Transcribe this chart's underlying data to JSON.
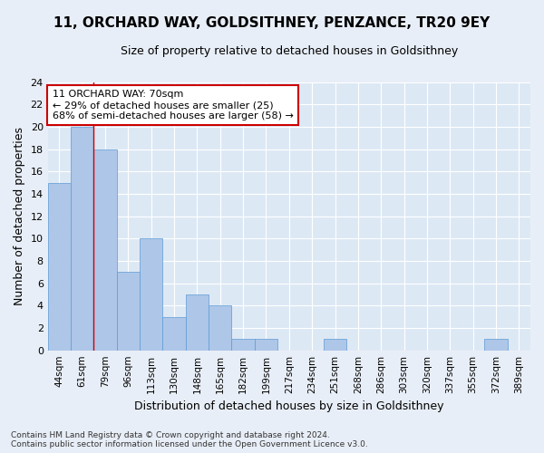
{
  "title": "11, ORCHARD WAY, GOLDSITHNEY, PENZANCE, TR20 9EY",
  "subtitle": "Size of property relative to detached houses in Goldsithney",
  "xlabel": "Distribution of detached houses by size in Goldsithney",
  "ylabel": "Number of detached properties",
  "bins": [
    "44sqm",
    "61sqm",
    "79sqm",
    "96sqm",
    "113sqm",
    "130sqm",
    "148sqm",
    "165sqm",
    "182sqm",
    "199sqm",
    "217sqm",
    "234sqm",
    "251sqm",
    "268sqm",
    "286sqm",
    "303sqm",
    "320sqm",
    "337sqm",
    "355sqm",
    "372sqm",
    "389sqm"
  ],
  "values": [
    15,
    20,
    18,
    7,
    10,
    3,
    5,
    4,
    1,
    1,
    0,
    0,
    1,
    0,
    0,
    0,
    0,
    0,
    0,
    1,
    0
  ],
  "bar_color": "#aec6e8",
  "bar_edge_color": "#5b9bd5",
  "property_line_x": 1.5,
  "property_line_color": "#cc0000",
  "annotation_text": "11 ORCHARD WAY: 70sqm\n← 29% of detached houses are smaller (25)\n68% of semi-detached houses are larger (58) →",
  "annotation_box_color": "#ffffff",
  "annotation_box_edge_color": "#cc0000",
  "ylim": [
    0,
    24
  ],
  "yticks": [
    0,
    2,
    4,
    6,
    8,
    10,
    12,
    14,
    16,
    18,
    20,
    22,
    24
  ],
  "background_color": "#dde8f5",
  "grid_color": "#ffffff",
  "fig_background": "#e8eef7",
  "footer": "Contains HM Land Registry data © Crown copyright and database right 2024.\nContains public sector information licensed under the Open Government Licence v3.0."
}
